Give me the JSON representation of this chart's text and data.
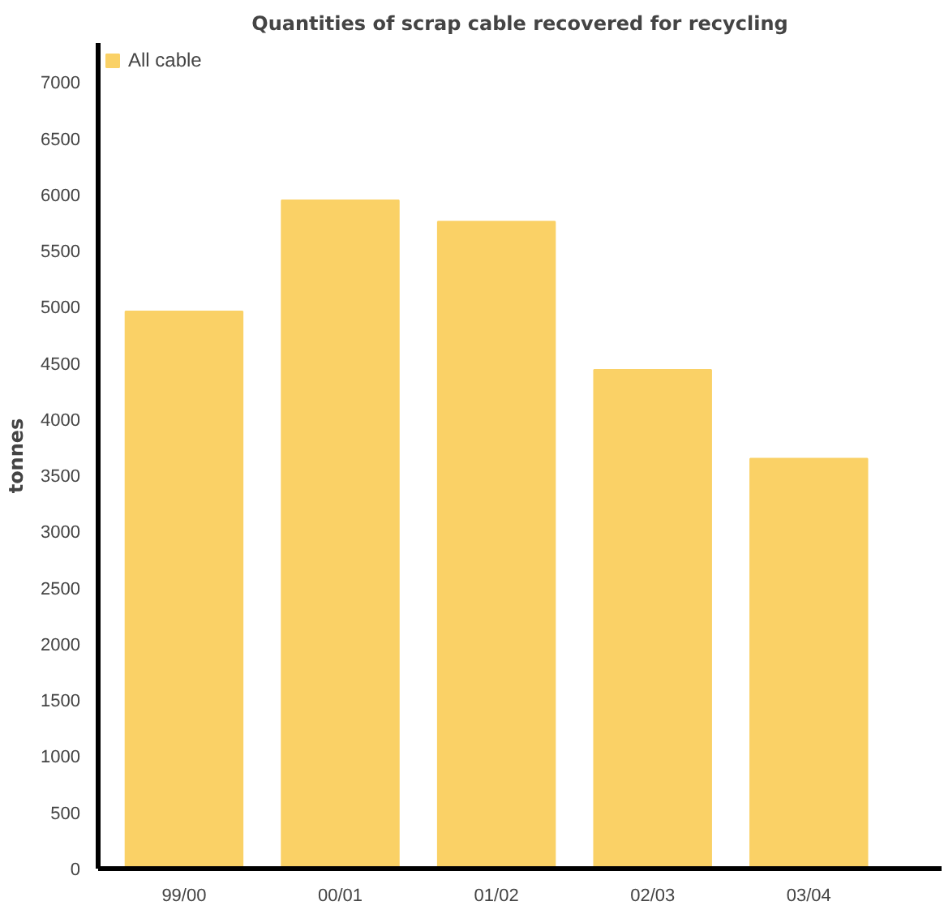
{
  "chart_data": {
    "type": "bar",
    "title": "Quantities of scrap cable recovered for recycling",
    "ylabel": "tonnes",
    "categories": [
      "99/00",
      "00/01",
      "01/02",
      "02/03",
      "03/04"
    ],
    "series": [
      {
        "name": "All cable",
        "color": "#fad166",
        "values": [
          4960,
          5950,
          5760,
          4440,
          3650
        ]
      }
    ],
    "ylim": [
      0,
      7350
    ],
    "yticks": [
      0,
      500,
      1000,
      1500,
      2000,
      2500,
      3000,
      3500,
      4000,
      4500,
      5000,
      5500,
      6000,
      6500,
      7000
    ],
    "grid": false,
    "legend": "top left"
  }
}
